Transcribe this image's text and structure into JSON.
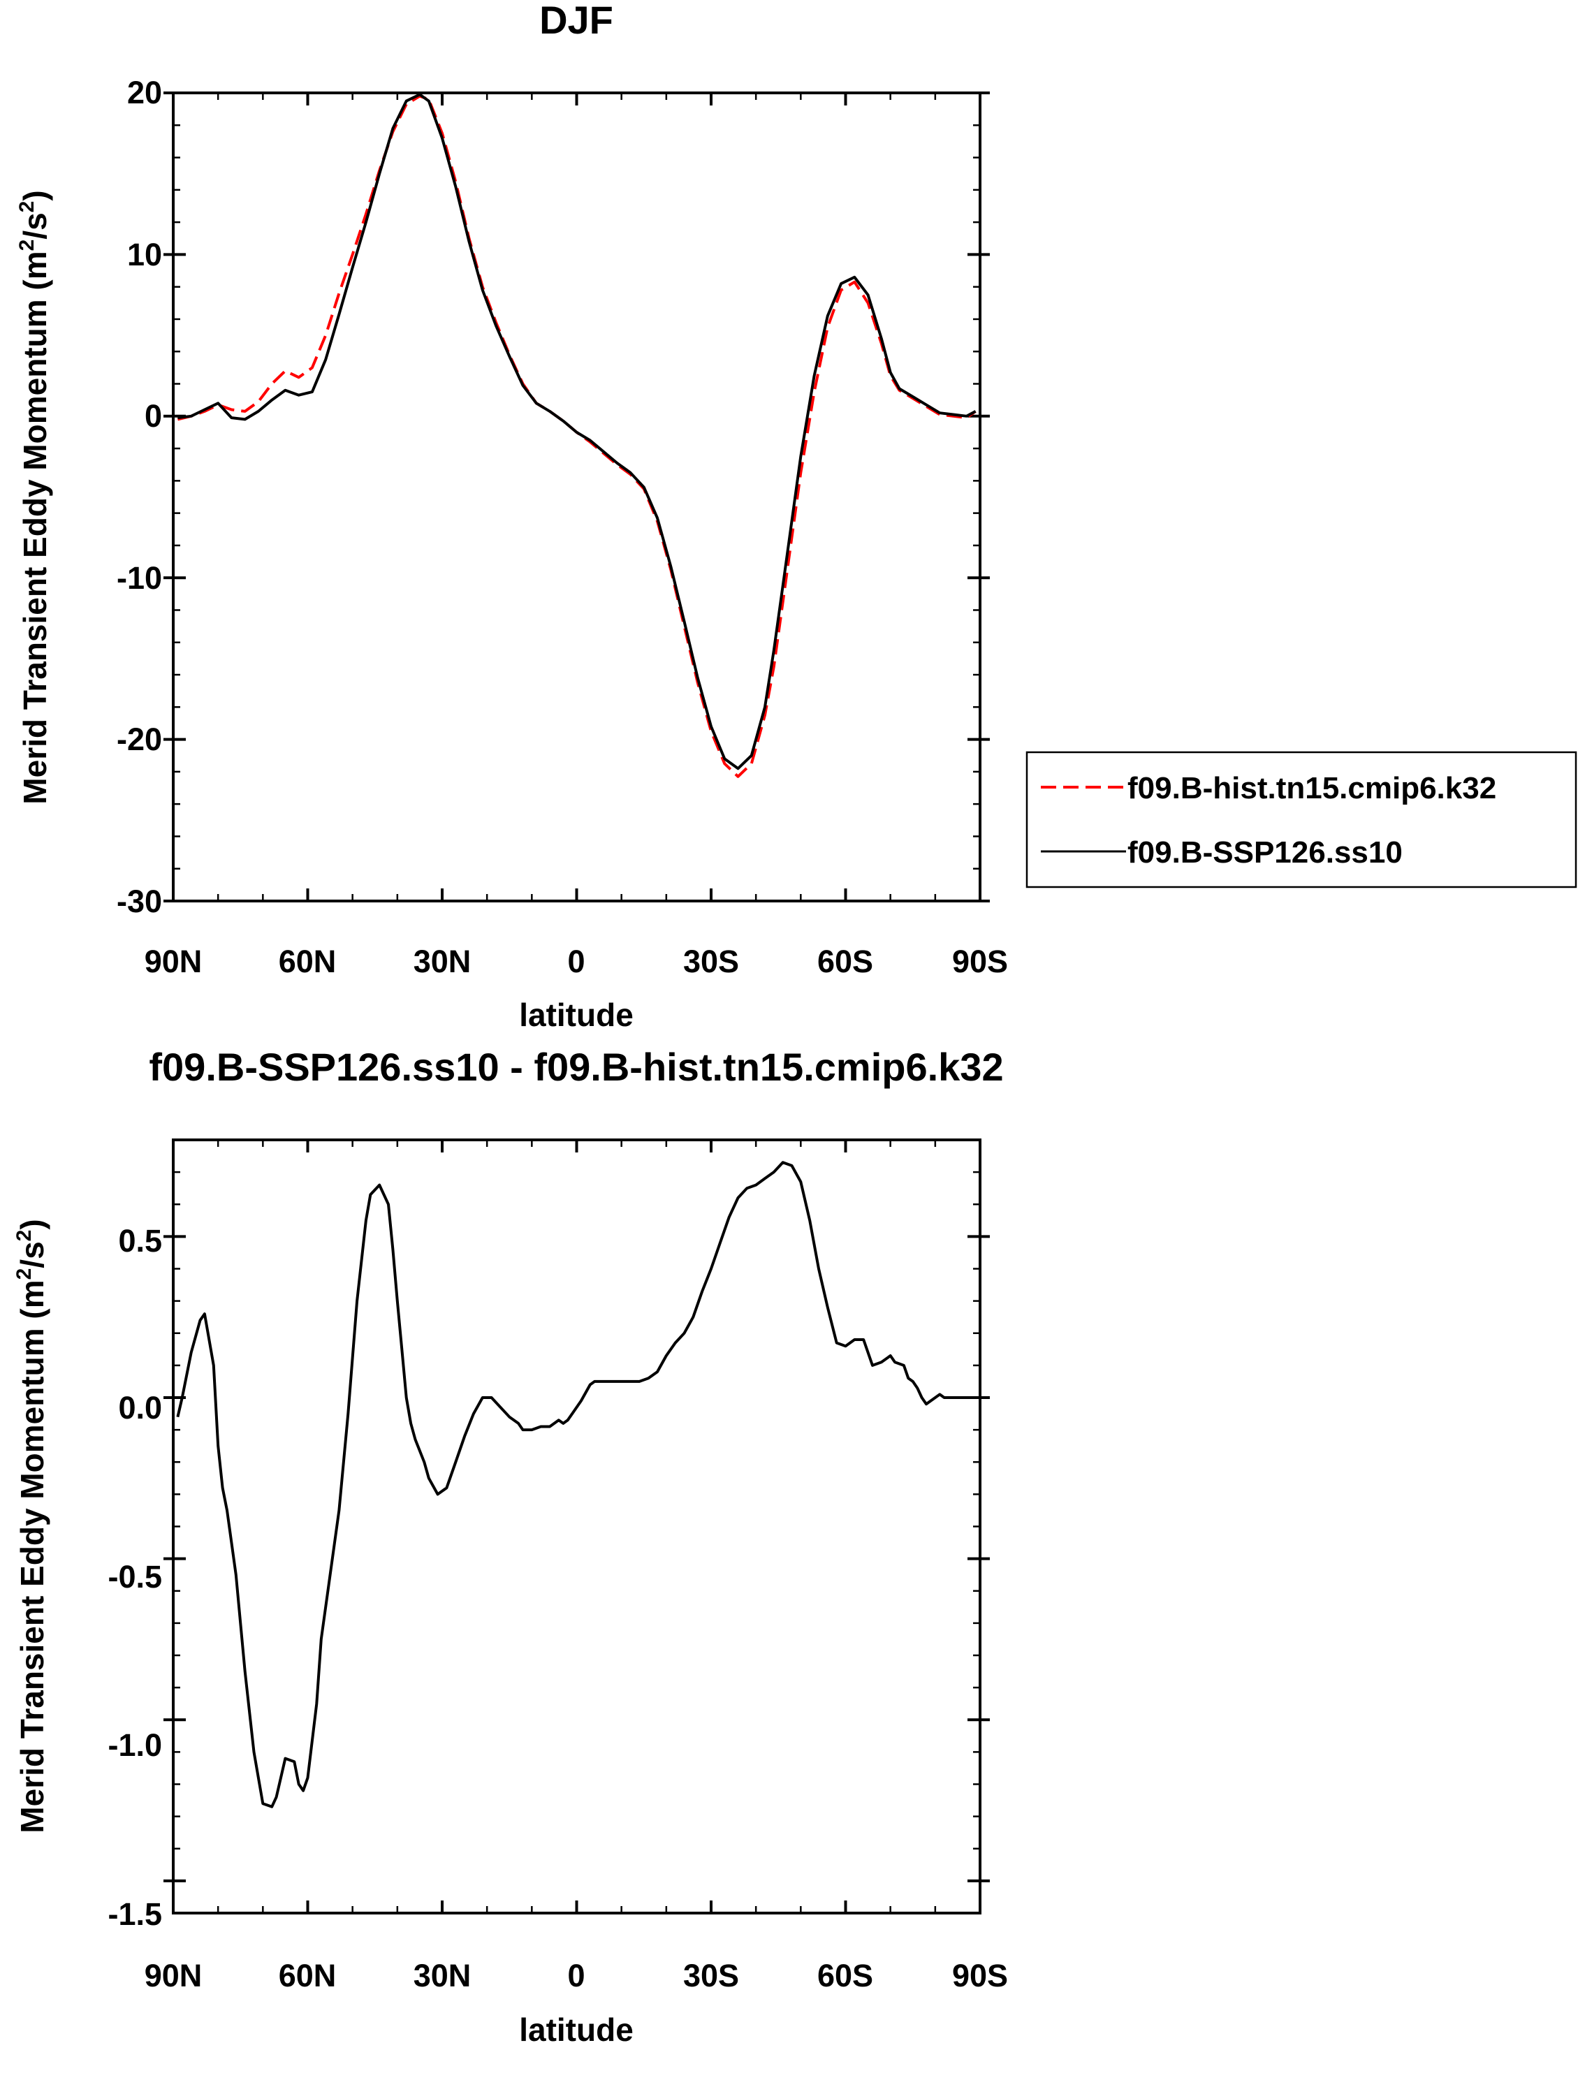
{
  "charts": {
    "top": {
      "title": "DJF",
      "xlabel": "latitude",
      "ylabel": "Merid Transient Eddy Momentum (m",
      "ylabel_sup1": "2",
      "ylabel_mid": "/s",
      "ylabel_sup2": "2",
      "ylabel_end": ")",
      "x_ticks": [
        "90N",
        "60N",
        "30N",
        "0",
        "30S",
        "60S",
        "90S"
      ],
      "y_ticks": [
        "20",
        "10",
        "0",
        "-10",
        "-20",
        "-30"
      ],
      "legend": {
        "hist_label": "f09.B-hist.tn15.cmip6.k32",
        "ssp_label": "f09.B-SSP126.ss10"
      }
    },
    "bottom": {
      "title": "f09.B-SSP126.ss10 - f09.B-hist.tn15.cmip6.k32",
      "xlabel": "latitude",
      "ylabel": "Merid Transient Eddy Momentum (m",
      "ylabel_sup1": "2",
      "ylabel_mid": "/s",
      "ylabel_sup2": "2",
      "ylabel_end": ")",
      "x_ticks": [
        "90N",
        "60N",
        "30N",
        "0",
        "30S",
        "60S",
        "90S"
      ],
      "y_ticks": [
        "0.5",
        "0.0",
        "-0.5",
        "-1.0",
        "-1.5"
      ]
    }
  },
  "colors": {
    "hist": "#ff0000",
    "ssp": "#000000"
  },
  "chart_data": [
    {
      "type": "line",
      "title": "DJF",
      "xlabel": "latitude",
      "ylabel": "Merid Transient Eddy Momentum (m2/s2)",
      "x_axis_note": "latitude from 90N (left) to 90S (right); values below are degrees north (negative = south)",
      "xlim": [
        90,
        -90
      ],
      "ylim": [
        -30,
        20
      ],
      "legend_position": "right-outside",
      "series": [
        {
          "name": "f09.B-hist.tn15.cmip6.k32",
          "style": "dashed",
          "color": "#ff0000",
          "x": [
            89,
            86,
            83,
            80,
            77,
            74,
            71,
            68,
            65,
            62,
            59,
            56,
            53,
            50,
            47,
            44,
            41,
            38,
            35,
            33,
            30,
            27,
            24,
            21,
            18,
            15,
            12,
            9,
            6,
            3,
            0,
            -3,
            -6,
            -9,
            -12,
            -15,
            -18,
            -21,
            -24,
            -27,
            -30,
            -33,
            -36,
            -39,
            -42,
            -44,
            -46,
            -48,
            -50,
            -53,
            -56,
            -59,
            -62,
            -65,
            -68,
            -70,
            -72,
            -75,
            -78,
            -81,
            -84,
            -87,
            -89
          ],
          "values": [
            -0.2,
            0.0,
            0.3,
            0.7,
            0.4,
            0.3,
            0.9,
            2.0,
            2.8,
            2.4,
            3.0,
            5.0,
            7.6,
            10.0,
            12.5,
            15.2,
            17.6,
            19.3,
            19.8,
            19.6,
            17.5,
            14.5,
            11.0,
            8.0,
            5.8,
            3.8,
            2.0,
            0.8,
            0.3,
            -0.3,
            -1.0,
            -1.6,
            -2.3,
            -3.0,
            -3.6,
            -4.5,
            -6.5,
            -9.5,
            -13.0,
            -16.5,
            -19.5,
            -21.5,
            -22.3,
            -21.5,
            -18.5,
            -15.5,
            -11.5,
            -7.5,
            -3.5,
            1.5,
            5.5,
            7.8,
            8.3,
            7.0,
            4.5,
            2.5,
            1.6,
            1.1,
            0.6,
            0.1,
            0.0,
            -0.1,
            0.3
          ]
        },
        {
          "name": "f09.B-SSP126.ss10",
          "style": "solid",
          "color": "#000000",
          "x": [
            89,
            86,
            83,
            80,
            77,
            74,
            71,
            68,
            65,
            62,
            59,
            56,
            53,
            50,
            47,
            44,
            41,
            38,
            35,
            33,
            30,
            27,
            24,
            21,
            18,
            15,
            12,
            9,
            6,
            3,
            0,
            -3,
            -6,
            -9,
            -12,
            -15,
            -18,
            -21,
            -24,
            -27,
            -30,
            -33,
            -36,
            -39,
            -42,
            -44,
            -46,
            -48,
            -50,
            -53,
            -56,
            -59,
            -62,
            -65,
            -68,
            -70,
            -72,
            -75,
            -78,
            -81,
            -84,
            -87,
            -89
          ],
          "values": [
            -0.1,
            0.0,
            0.4,
            0.8,
            -0.1,
            -0.2,
            0.3,
            1.0,
            1.6,
            1.3,
            1.5,
            3.5,
            6.3,
            9.2,
            12.0,
            15.0,
            17.8,
            19.5,
            19.9,
            19.5,
            17.2,
            14.2,
            10.8,
            7.8,
            5.6,
            3.7,
            1.9,
            0.8,
            0.3,
            -0.3,
            -1.0,
            -1.5,
            -2.2,
            -2.9,
            -3.5,
            -4.4,
            -6.3,
            -9.3,
            -12.7,
            -16.2,
            -19.2,
            -21.2,
            -21.8,
            -21.0,
            -18.0,
            -14.5,
            -10.5,
            -6.5,
            -2.5,
            2.5,
            6.2,
            8.2,
            8.6,
            7.5,
            4.8,
            2.7,
            1.7,
            1.2,
            0.7,
            0.2,
            0.1,
            0.0,
            0.3
          ]
        }
      ]
    },
    {
      "type": "line",
      "title": "f09.B-SSP126.ss10 - f09.B-hist.tn15.cmip6.k32",
      "xlabel": "latitude",
      "ylabel": "Merid Transient Eddy Momentum (m2/s2)",
      "x_axis_note": "latitude from 90N (left) to 90S (right); values below are degrees north (negative = south)",
      "xlim": [
        90,
        -90
      ],
      "ylim": [
        -1.6,
        0.8
      ],
      "series": [
        {
          "style": "solid",
          "color": "#000000",
          "x": [
            89,
            88,
            86,
            84,
            83,
            81,
            80,
            79,
            78,
            76,
            74,
            72,
            70,
            68,
            67,
            66,
            65,
            63,
            62,
            61,
            60,
            58,
            57,
            55,
            53,
            51,
            49,
            47,
            46,
            44,
            42,
            41,
            40,
            39,
            38,
            37,
            36,
            34,
            33,
            31,
            29,
            27,
            25,
            23,
            21,
            19,
            17,
            15,
            13,
            12,
            10,
            8,
            6,
            4,
            3,
            2,
            1,
            -1,
            -3,
            -4,
            -6,
            -8,
            -10,
            -12,
            -14,
            -16,
            -18,
            -20,
            -22,
            -24,
            -26,
            -28,
            -30,
            -32,
            -34,
            -36,
            -38,
            -40,
            -42,
            -44,
            -46,
            -48,
            -50,
            -52,
            -54,
            -56,
            -58,
            -60,
            -62,
            -64,
            -66,
            -68,
            -70,
            -71,
            -73,
            -74,
            -75,
            -76,
            -77,
            -78,
            -79,
            -81,
            -82,
            -83,
            -84,
            -85,
            -86,
            -87,
            -88,
            -89
          ],
          "values": [
            -0.06,
            0.0,
            0.14,
            0.24,
            0.26,
            0.1,
            -0.15,
            -0.28,
            -0.35,
            -0.55,
            -0.85,
            -1.1,
            -1.26,
            -1.27,
            -1.24,
            -1.18,
            -1.12,
            -1.13,
            -1.2,
            -1.22,
            -1.18,
            -0.95,
            -0.75,
            -0.55,
            -0.35,
            -0.05,
            0.3,
            0.55,
            0.63,
            0.66,
            0.6,
            0.46,
            0.3,
            0.15,
            0.0,
            -0.08,
            -0.13,
            -0.2,
            -0.25,
            -0.3,
            -0.28,
            -0.2,
            -0.12,
            -0.05,
            0.0,
            0.0,
            -0.03,
            -0.06,
            -0.08,
            -0.1,
            -0.1,
            -0.09,
            -0.09,
            -0.07,
            -0.08,
            -0.07,
            -0.05,
            -0.01,
            0.04,
            0.05,
            0.05,
            0.05,
            0.05,
            0.05,
            0.05,
            0.06,
            0.08,
            0.13,
            0.17,
            0.2,
            0.25,
            0.33,
            0.4,
            0.48,
            0.56,
            0.62,
            0.65,
            0.66,
            0.68,
            0.7,
            0.73,
            0.72,
            0.67,
            0.55,
            0.4,
            0.28,
            0.17,
            0.16,
            0.18,
            0.18,
            0.1,
            0.11,
            0.13,
            0.11,
            0.1,
            0.06,
            0.05,
            0.03,
            0.0,
            -0.02,
            -0.01,
            0.01,
            0.0,
            0.0,
            0.0,
            0.0,
            0.0,
            0.0,
            0.0,
            0.0
          ]
        }
      ]
    }
  ]
}
